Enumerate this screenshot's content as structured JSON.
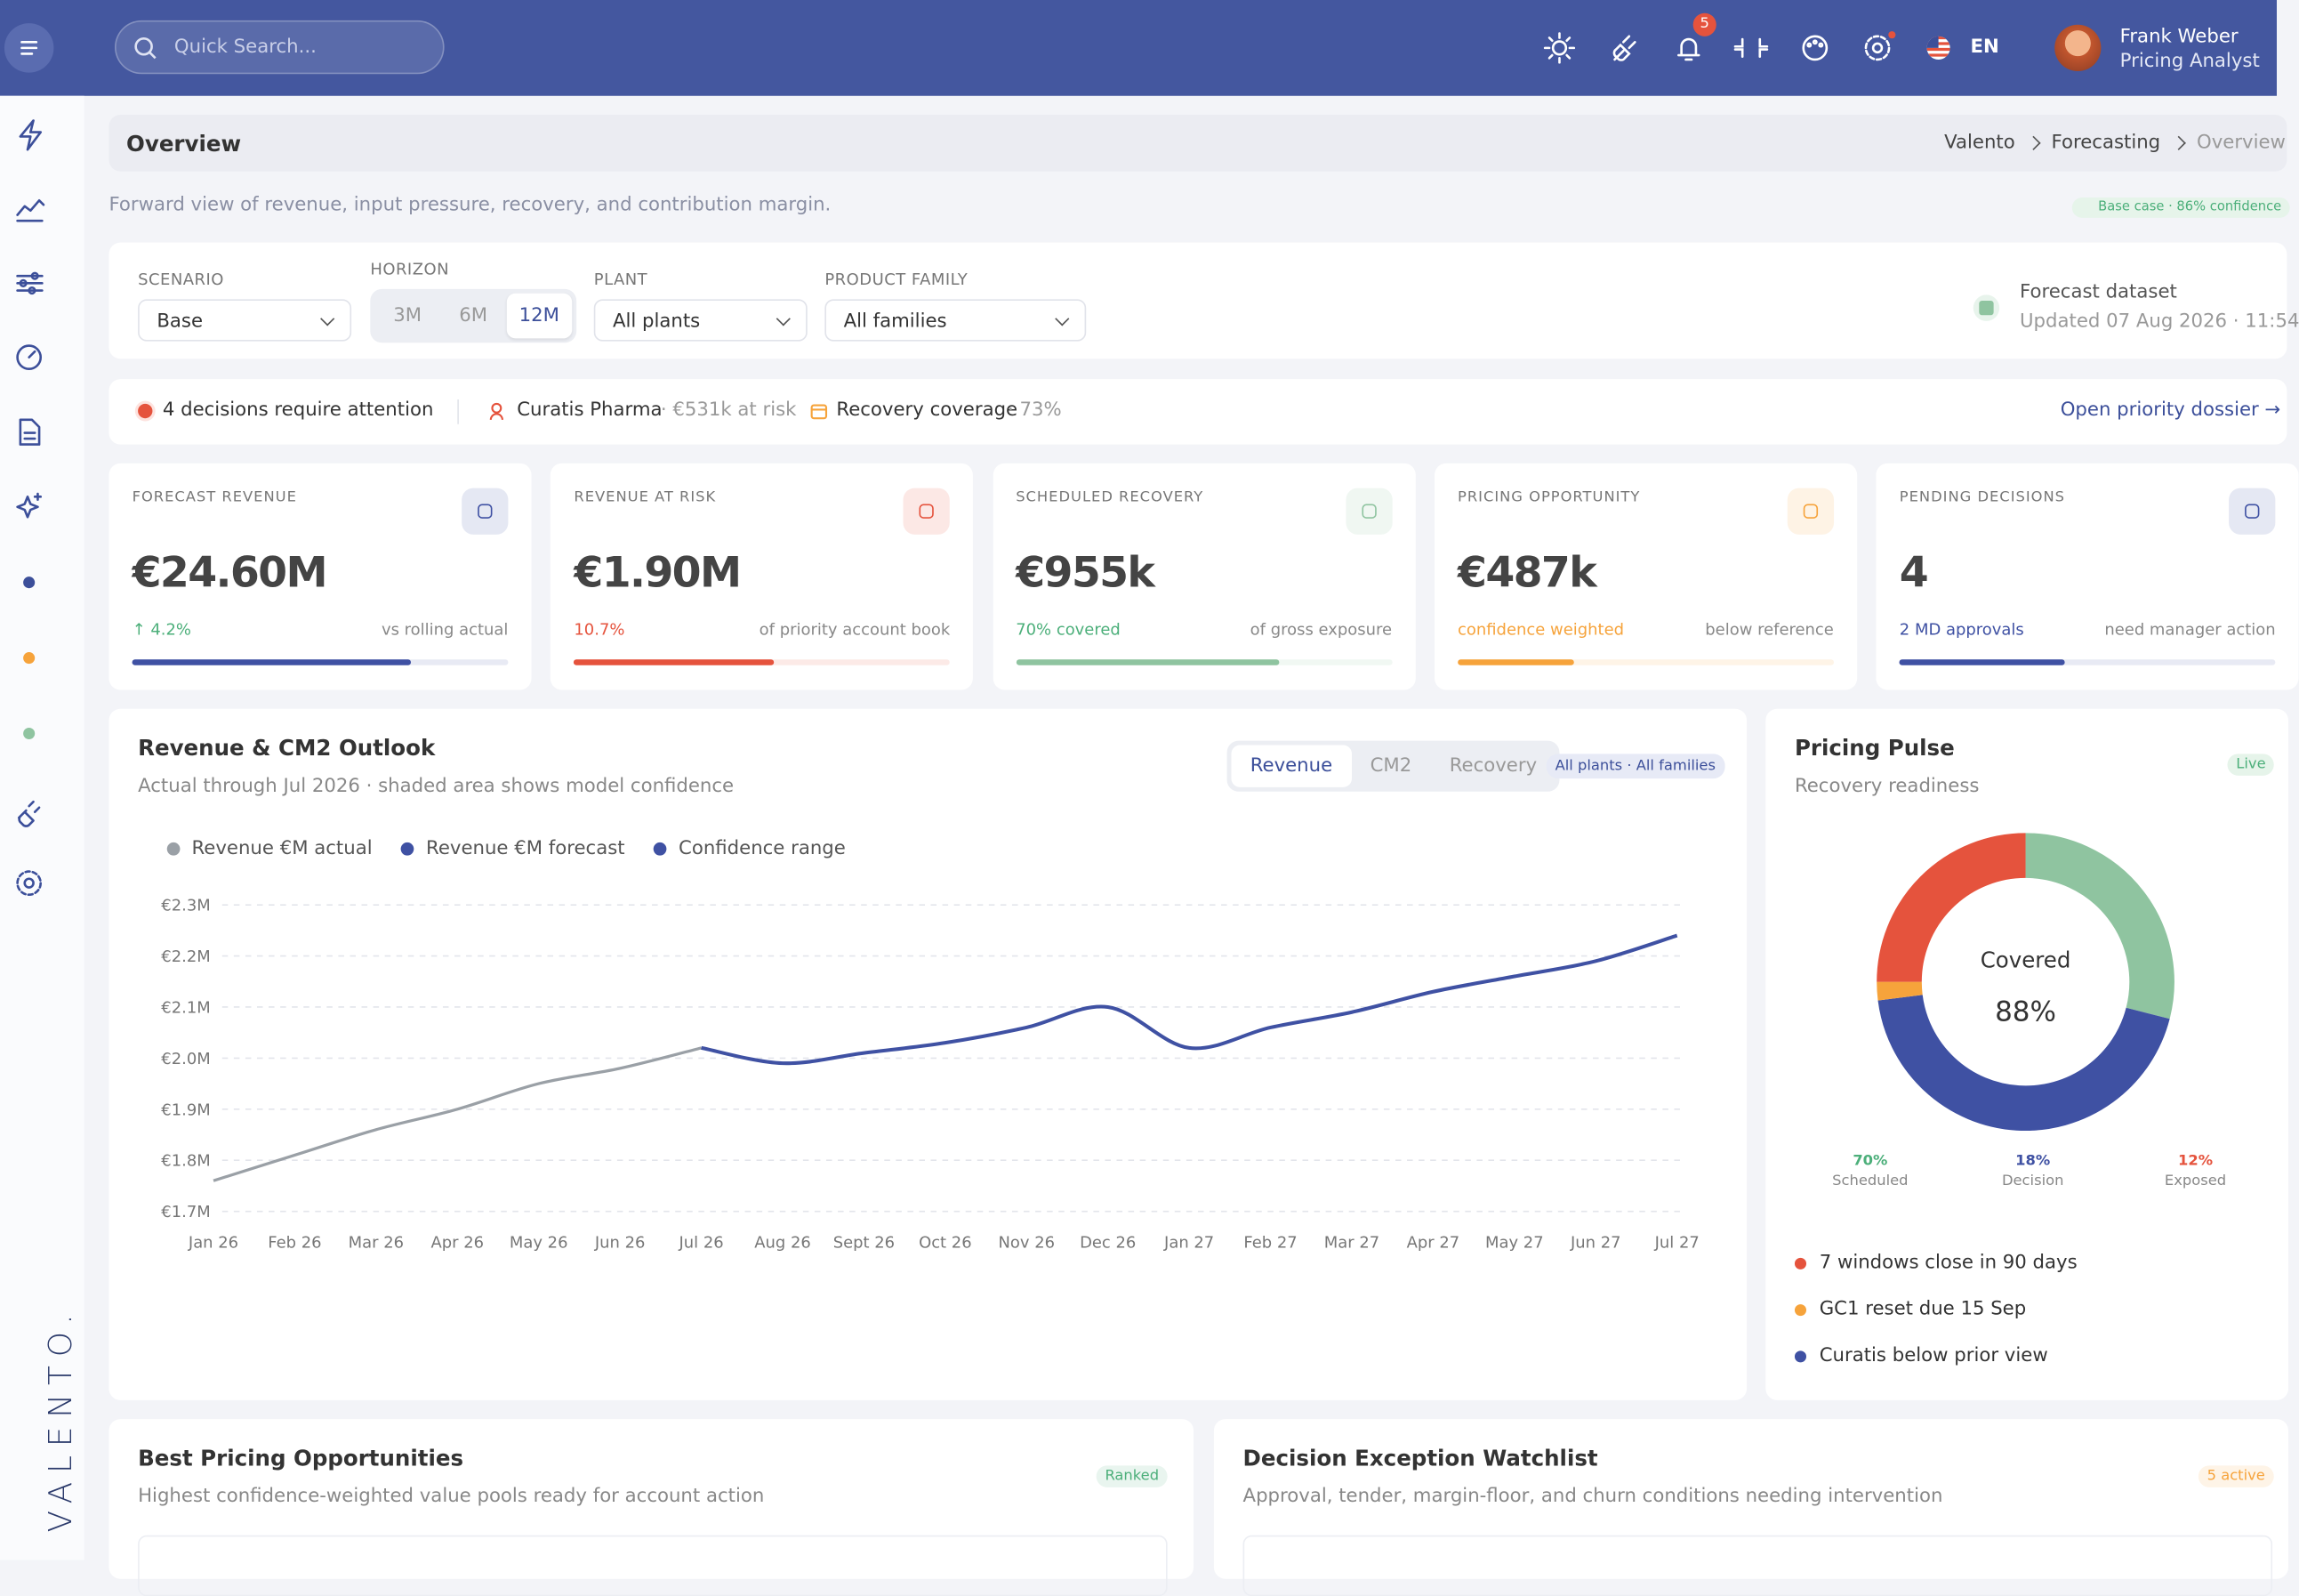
{
  "header": {
    "search_placeholder": "Quick Search...",
    "notification_count": "5",
    "language": "EN",
    "user_name": "Frank Weber",
    "user_role": "Pricing Analyst"
  },
  "sidebar": {
    "brand": "VALENTO."
  },
  "page": {
    "title": "Overview",
    "breadcrumb": [
      "Valento",
      "Forecasting",
      "Overview"
    ],
    "subtitle": "Forward view of revenue, input pressure, recovery, and contribution margin.",
    "status_badge": "Base case · 86% confidence"
  },
  "filters": {
    "scenario": {
      "label": "SCENARIO",
      "value": "Base"
    },
    "horizon": {
      "label": "HORIZON",
      "options": [
        "3M",
        "6M",
        "12M"
      ],
      "selected": 2
    },
    "plant": {
      "label": "PLANT",
      "value": "All plants"
    },
    "product_family": {
      "label": "PRODUCT FAMILY",
      "value": "All families"
    },
    "dataset": {
      "title": "Forecast dataset",
      "updated": "Updated 07 Aug 2026 · 11:54"
    }
  },
  "alerts": {
    "decisions": "4 decisions require attention",
    "account": "Curatis Pharma",
    "account_detail": "· €531k at risk",
    "coverage": "Recovery coverage",
    "coverage_value": "· 73%",
    "link": "Open priority dossier →"
  },
  "kpis": [
    {
      "label": "FORECAST REVENUE",
      "value": "€24.60M",
      "delta": "↑ 4.2%",
      "note": "vs rolling actual",
      "progress": 74,
      "color": "#3f51a3",
      "delta_color": "#4caf7a"
    },
    {
      "label": "REVENUE AT RISK",
      "value": "€1.90M",
      "delta": "10.7%",
      "note": "of priority account book",
      "progress": 53,
      "color": "#e5533d",
      "delta_color": "#e5533d"
    },
    {
      "label": "SCHEDULED RECOVERY",
      "value": "€955k",
      "delta": "70% covered",
      "note": "of gross exposure",
      "progress": 70,
      "color": "#8fc4a0",
      "delta_color": "#4caf7a"
    },
    {
      "label": "PRICING OPPORTUNITY",
      "value": "€487k",
      "delta": "confidence weighted",
      "note": "below reference",
      "progress": 31,
      "color": "#f6a33b",
      "delta_color": "#f6a33b"
    },
    {
      "label": "PENDING DECISIONS",
      "value": "4",
      "delta": "2 MD approvals",
      "note": "need manager action",
      "progress": 44,
      "color": "#3f51a3",
      "delta_color": "#3f51a3"
    }
  ],
  "revenue_chart": {
    "type": "line",
    "title": "Revenue & CM2 Outlook",
    "subtitle": "Actual through Jul 2026 · shaded area shows model confidence",
    "tabs": [
      "Revenue",
      "CM2",
      "Recovery"
    ],
    "selected_tab": 0,
    "badge": "All plants · All families",
    "categories": [
      "Jan 26",
      "Feb 26",
      "Mar 26",
      "Apr 26",
      "May 26",
      "Jun 26",
      "Jul 26",
      "Aug 26",
      "Sept 26",
      "Oct 26",
      "Nov 26",
      "Dec 26",
      "Jan 27",
      "Feb 27",
      "Mar 27",
      "Apr 27",
      "May 27",
      "Jun 27",
      "Jul 27"
    ],
    "series": [
      {
        "name": "Revenue €M actual",
        "color": "#9aa0a6",
        "values": [
          1.76,
          1.81,
          1.86,
          1.9,
          1.95,
          1.98,
          2.02,
          null,
          null,
          null,
          null,
          null,
          null,
          null,
          null,
          null,
          null,
          null,
          null
        ]
      },
      {
        "name": "Revenue €M forecast",
        "color": "#3f51a3",
        "values": [
          null,
          null,
          null,
          null,
          null,
          null,
          2.02,
          1.99,
          2.01,
          2.03,
          2.06,
          2.1,
          2.02,
          2.06,
          2.09,
          2.13,
          2.16,
          2.19,
          2.24
        ]
      },
      {
        "name": "Confidence range",
        "color": "#3f51a3"
      }
    ],
    "ylim": [
      1.7,
      2.3
    ],
    "yticks": [
      {
        "value": 1.7,
        "label": "€1.7M"
      },
      {
        "value": 1.8,
        "label": "€1.8M"
      },
      {
        "value": 1.9,
        "label": "€1.9M"
      },
      {
        "value": 2.0,
        "label": "€2.0M"
      },
      {
        "value": 2.1,
        "label": "€2.1M"
      },
      {
        "value": 2.2,
        "label": "€2.2M"
      },
      {
        "value": 2.3,
        "label": "€2.3M"
      }
    ],
    "grid": true
  },
  "pricing_pulse": {
    "title": "Pricing Pulse",
    "subtitle": "Recovery readiness",
    "badge": "Live",
    "chart": {
      "type": "donut",
      "center_label": "Covered",
      "center_value": "88%",
      "segments": [
        {
          "value": 29,
          "color": "#8fc4a0"
        },
        {
          "value": 44,
          "color": "#3f51a3"
        },
        {
          "value": 2,
          "color": "#f6a33b"
        },
        {
          "value": 25,
          "color": "#e5533d"
        }
      ]
    },
    "stats": [
      {
        "value": "70%",
        "caption": "Scheduled",
        "color": "#4caf7a"
      },
      {
        "value": "18%",
        "caption": "Decision",
        "color": "#3f51a3"
      },
      {
        "value": "12%",
        "caption": "Exposed",
        "color": "#e5533d"
      }
    ],
    "items": [
      {
        "text": "7 windows close in 90 days",
        "color": "#e5533d"
      },
      {
        "text": "GC1 reset due 15 Sep",
        "color": "#f6a33b"
      },
      {
        "text": "Curatis below prior view",
        "color": "#3f51a3"
      }
    ]
  },
  "bottom_cards": [
    {
      "title": "Best Pricing Opportunities",
      "subtitle": "Highest confidence-weighted value pools ready for account action",
      "badge": "Ranked",
      "badge_color": "#4caf7a"
    },
    {
      "title": "Decision Exception Watchlist",
      "subtitle": "Approval, tender, margin-floor, and churn conditions needing intervention",
      "badge": "5 active",
      "badge_color": "#f6a33b"
    }
  ]
}
